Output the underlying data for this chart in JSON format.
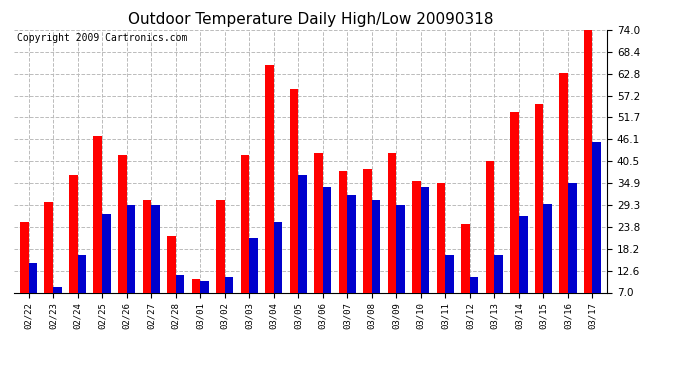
{
  "title": "Outdoor Temperature Daily High/Low 20090318",
  "copyright": "Copyright 2009 Cartronics.com",
  "dates": [
    "02/22",
    "02/23",
    "02/24",
    "02/25",
    "02/26",
    "02/27",
    "02/28",
    "03/01",
    "03/02",
    "03/03",
    "03/04",
    "03/05",
    "03/06",
    "03/07",
    "03/08",
    "03/09",
    "03/10",
    "03/11",
    "03/12",
    "03/13",
    "03/14",
    "03/15",
    "03/16",
    "03/17"
  ],
  "highs": [
    25.0,
    30.0,
    37.0,
    47.0,
    42.0,
    30.5,
    21.5,
    10.5,
    30.5,
    42.0,
    65.0,
    59.0,
    42.5,
    38.0,
    38.5,
    42.5,
    35.5,
    34.9,
    24.5,
    40.5,
    53.0,
    55.0,
    63.0,
    74.0
  ],
  "lows": [
    14.5,
    8.5,
    16.5,
    27.0,
    29.3,
    29.3,
    11.5,
    10.0,
    11.0,
    21.0,
    25.0,
    37.0,
    34.0,
    32.0,
    30.5,
    29.3,
    34.0,
    16.5,
    11.0,
    16.5,
    26.5,
    29.5,
    34.9,
    45.5
  ],
  "high_color": "#ff0000",
  "low_color": "#0000cc",
  "bg_color": "#ffffff",
  "grid_color": "#bbbbbb",
  "ylim": [
    7.0,
    74.0
  ],
  "yticks": [
    7.0,
    12.6,
    18.2,
    23.8,
    29.3,
    34.9,
    40.5,
    46.1,
    51.7,
    57.2,
    62.8,
    68.4,
    74.0
  ],
  "title_fontsize": 11,
  "copyright_fontsize": 7,
  "bar_width": 0.35,
  "figwidth": 6.9,
  "figheight": 3.75,
  "dpi": 100
}
